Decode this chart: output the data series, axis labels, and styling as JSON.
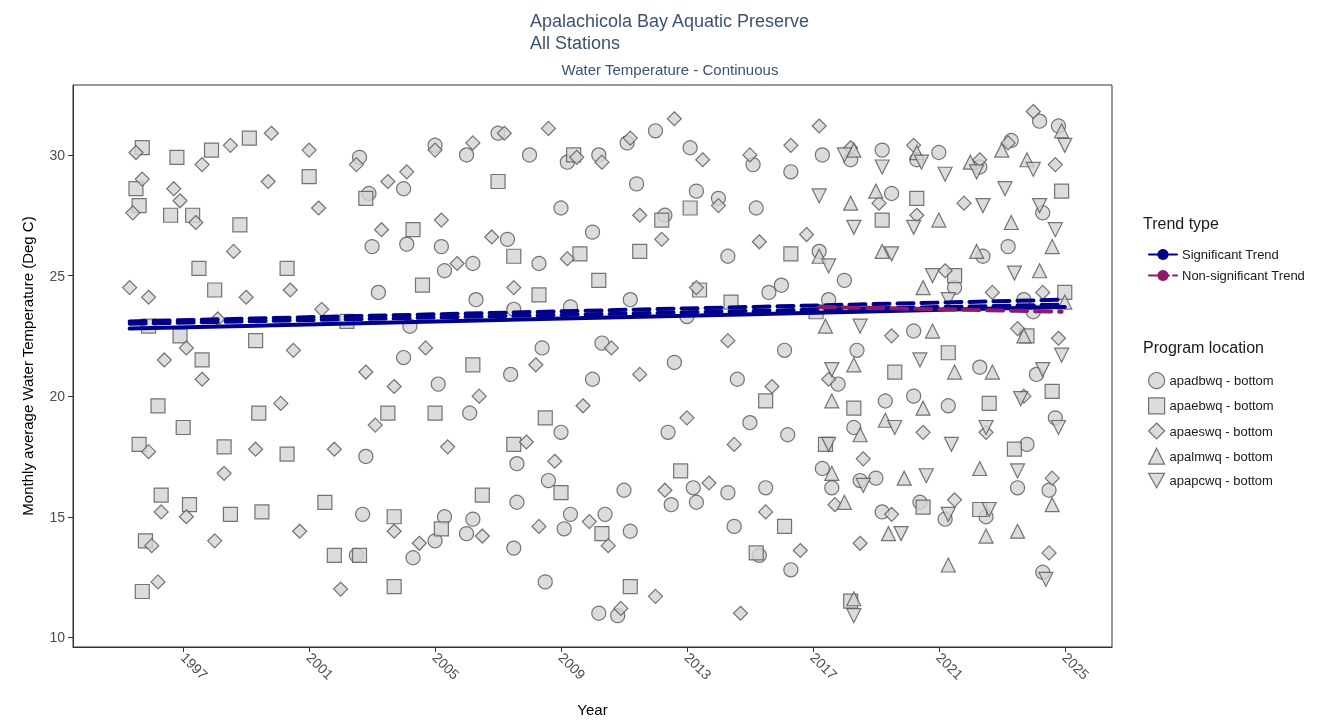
{
  "chart_data": {
    "type": "scatter",
    "title": "Apalachicola Bay Aquatic Preserve\nAll Stations",
    "subtitle": "Water Temperature - Continuous",
    "xlabel": "Year",
    "ylabel": "Monthly average Water Temperature (Deg C)",
    "legend_title": [
      "Trend type",
      "Program location"
    ],
    "legend": "right",
    "grid": false,
    "xlim": [
      1993.5,
      2026.5
    ],
    "xticks": [
      1997,
      2001,
      2005,
      2009,
      2013,
      2017,
      2021,
      2025
    ],
    "ylim": [
      9.6,
      32.9
    ],
    "yticks": [
      10,
      15,
      20,
      25,
      30
    ],
    "series": [
      {
        "name": "apadbwq - bottom",
        "marker": "circle",
        "color": "#d3d3d3",
        "x": [
          2002.6,
          2002.9,
          2003.0,
          2003.2,
          2002.8,
          2002.5,
          2002.7,
          2004.0,
          2004.1,
          2004.2,
          2004.0,
          2004.3,
          2005.0,
          2005.2,
          2005.3,
          2005.1,
          2005.3,
          2005.0,
          2006.0,
          2006.2,
          2006.3,
          2006.1,
          2006.2,
          2006.0,
          2007.0,
          2007.3,
          2007.5,
          2007.4,
          2007.6,
          2007.6,
          2007.5,
          2008.0,
          2008.3,
          2008.4,
          2008.6,
          2008.5,
          2009.2,
          2009.0,
          2009.3,
          2009.0,
          2009.3,
          2009.1,
          2010.2,
          2010.0,
          2010.0,
          2010.2,
          2010.4,
          2010.3,
          2011.1,
          2011.4,
          2011.2,
          2011.0,
          2010.8,
          2011.2,
          2012.0,
          2012.3,
          2012.6,
          2012.4,
          2012.5,
          2013.1,
          2013.3,
          2013.0,
          2013.2,
          2013.3,
          2014.0,
          2014.3,
          2014.6,
          2014.3,
          2014.5,
          2015.1,
          2015.2,
          2015.6,
          2015.5,
          2015.0,
          2015.3,
          2016.3,
          2016.0,
          2016.1,
          2016.2,
          2016.3,
          2017.3,
          2017.2,
          2017.5,
          2017.8,
          2017.3,
          2017.6,
          2018.2,
          2018.0,
          2018.4,
          2018.5,
          2018.3,
          2019.2,
          2019.5,
          2019.3,
          2019.0,
          2019.2,
          2020.3,
          2020.2,
          2020.2,
          2020.4,
          2021.0,
          2021.5,
          2021.3,
          2021.2,
          2022.3,
          2022.4,
          2022.3,
          2022.5,
          2023.3,
          2023.2,
          2023.7,
          2023.8,
          2023.5,
          2024.2,
          2024.3,
          2024.0,
          2024.1,
          2024.5,
          2024.3,
          2024.8,
          2024.7
        ],
        "values": [
          29.9,
          28.4,
          26.2,
          24.3,
          17.5,
          13.4,
          15.1,
          28.6,
          26.3,
          22.9,
          21.6,
          13.3,
          30.4,
          26.2,
          25.2,
          20.5,
          15.0,
          14.0,
          30.0,
          25.5,
          24.0,
          19.3,
          14.9,
          14.3,
          30.9,
          26.5,
          23.6,
          20.9,
          17.2,
          15.6,
          13.7,
          30.0,
          25.5,
          22.0,
          16.5,
          12.3,
          29.7,
          27.8,
          23.7,
          18.5,
          15.1,
          14.5,
          30.0,
          26.8,
          20.7,
          11.0,
          15.1,
          22.2,
          30.5,
          28.8,
          24.0,
          16.1,
          10.9,
          14.4,
          31.0,
          27.5,
          21.4,
          18.5,
          15.5,
          30.3,
          28.5,
          23.3,
          16.2,
          15.6,
          28.2,
          25.8,
          20.7,
          16.0,
          14.6,
          29.6,
          27.8,
          24.3,
          16.2,
          18.9,
          13.4,
          29.3,
          24.6,
          21.9,
          18.4,
          12.8,
          30.0,
          26.0,
          24.0,
          20.5,
          17.0,
          16.2,
          29.8,
          24.8,
          21.9,
          16.5,
          18.7,
          30.2,
          28.4,
          19.8,
          16.6,
          15.2,
          29.8,
          22.7,
          20.0,
          15.6,
          30.1,
          24.5,
          19.6,
          14.9,
          29.5,
          25.8,
          21.2,
          15.0,
          30.6,
          26.2,
          24.0,
          18.0,
          16.2,
          31.4,
          27.6,
          23.5,
          20.9,
          16.1,
          12.7,
          31.2,
          19.1
        ]
      },
      {
        "name": "apaebwq - bottom",
        "marker": "square",
        "color": "#d3d3d3",
        "x": [
          1995.5,
          1995.7,
          1995.6,
          1995.8,
          1995.6,
          1995.7,
          1995.9,
          1996.2,
          1996.3,
          1996.6,
          1996.8,
          1996.9,
          1997.0,
          1997.2,
          1997.3,
          1997.5,
          1997.6,
          1997.9,
          1998.0,
          1998.3,
          1998.5,
          1998.8,
          1999.1,
          1999.3,
          1999.4,
          1999.5,
          2000.3,
          2000.3,
          2001.0,
          2001.5,
          2001.8,
          2002.2,
          2002.6,
          2002.8,
          2003.5,
          2003.7,
          2003.7,
          2004.3,
          2004.6,
          2005.0,
          2005.2,
          2006.2,
          2006.5,
          2007.0,
          2007.5,
          2007.5,
          2008.3,
          2008.5,
          2009.0,
          2009.4,
          2009.6,
          2010.2,
          2010.3,
          2011.2,
          2011.5,
          2012.2,
          2012.8,
          2013.1,
          2013.4,
          2014.4,
          2015.2,
          2015.5,
          2016.1,
          2016.3,
          2017.1,
          2017.4,
          2018.2,
          2018.3,
          2019.2,
          2019.6,
          2020.3,
          2020.5,
          2021.3,
          2021.5,
          2022.3,
          2022.6,
          2023.4,
          2023.8,
          2024.6,
          2025.0,
          2024.9
        ],
        "values": [
          28.6,
          30.3,
          27.9,
          14.0,
          18.0,
          11.9,
          22.9,
          19.6,
          15.9,
          27.5,
          29.9,
          22.5,
          18.7,
          15.5,
          27.5,
          25.3,
          21.5,
          30.2,
          24.4,
          17.9,
          15.1,
          27.1,
          30.7,
          22.3,
          19.3,
          15.2,
          25.3,
          17.6,
          29.1,
          15.6,
          13.4,
          23.1,
          13.4,
          28.2,
          19.3,
          12.1,
          15.0,
          26.9,
          24.6,
          19.3,
          14.5,
          21.3,
          15.9,
          28.9,
          25.8,
          18.0,
          24.2,
          19.1,
          16.0,
          30.0,
          25.9,
          24.8,
          14.3,
          12.1,
          26.0,
          27.3,
          16.9,
          27.8,
          24.4,
          23.9,
          13.5,
          19.8,
          14.6,
          25.9,
          23.5,
          18.0,
          11.5,
          19.5,
          27.3,
          21.0,
          28.2,
          15.4,
          21.8,
          25.0,
          15.3,
          19.7,
          17.8,
          22.5,
          20.2,
          24.3,
          28.5
        ]
      },
      {
        "name": "apaeswq - bottom",
        "marker": "diamond",
        "color": "#d3d3d3",
        "x": [
          1995.3,
          1995.5,
          1995.4,
          1995.9,
          1995.7,
          1996.0,
          1996.2,
          1996.3,
          1995.9,
          1996.4,
          1996.7,
          1996.9,
          1997.1,
          1997.1,
          1997.4,
          1997.6,
          1997.6,
          1998.1,
          1998.0,
          1998.3,
          1998.6,
          1998.5,
          1999.0,
          1999.3,
          1999.7,
          1999.8,
          2000.1,
          2000.4,
          2000.5,
          2000.7,
          2001.0,
          2001.3,
          2001.4,
          2001.8,
          2002.0,
          2002.5,
          2002.8,
          2003.1,
          2003.3,
          2003.5,
          2003.7,
          2003.7,
          2004.1,
          2004.5,
          2004.7,
          2005.0,
          2005.2,
          2005.4,
          2005.7,
          2006.2,
          2006.4,
          2006.5,
          2006.8,
          2007.2,
          2007.5,
          2007.9,
          2008.2,
          2008.3,
          2008.6,
          2008.8,
          2009.2,
          2009.5,
          2009.7,
          2009.9,
          2010.3,
          2010.6,
          2010.5,
          2010.9,
          2011.2,
          2011.5,
          2011.5,
          2012.0,
          2012.2,
          2012.3,
          2012.6,
          2013.0,
          2013.3,
          2013.5,
          2013.7,
          2014.0,
          2014.3,
          2014.5,
          2014.7,
          2015.0,
          2015.3,
          2015.5,
          2015.7,
          2016.3,
          2016.6,
          2016.8,
          2017.2,
          2017.5,
          2017.7,
          2018.2,
          2018.5,
          2018.6,
          2019.1,
          2019.5,
          2019.5,
          2020.2,
          2020.3,
          2020.5,
          2021.2,
          2021.5,
          2021.8,
          2022.3,
          2022.5,
          2022.7,
          2023.2,
          2023.5,
          2023.7,
          2024.0,
          2024.3,
          2024.5,
          2024.6,
          2024.7,
          2024.8
        ],
        "values": [
          24.5,
          30.1,
          27.6,
          24.1,
          29.0,
          13.8,
          12.3,
          15.2,
          17.7,
          21.5,
          28.6,
          28.1,
          22.0,
          15.0,
          27.2,
          29.6,
          20.7,
          23.2,
          14.0,
          16.8,
          26.0,
          30.4,
          24.1,
          17.8,
          28.9,
          30.9,
          19.7,
          24.4,
          21.9,
          14.4,
          30.2,
          27.8,
          23.6,
          17.8,
          12.0,
          29.6,
          21.0,
          18.8,
          26.9,
          28.9,
          14.4,
          20.4,
          29.3,
          13.9,
          22.0,
          30.2,
          27.3,
          17.9,
          25.5,
          30.5,
          20.0,
          14.2,
          26.6,
          30.9,
          24.5,
          18.1,
          21.3,
          14.6,
          31.1,
          17.3,
          25.7,
          29.9,
          19.6,
          14.8,
          29.7,
          22.0,
          13.8,
          11.2,
          30.7,
          27.5,
          20.9,
          11.7,
          26.5,
          16.1,
          31.5,
          19.1,
          24.5,
          29.8,
          16.4,
          27.9,
          22.3,
          18.0,
          11.0,
          30.0,
          26.4,
          15.2,
          20.4,
          30.4,
          13.6,
          26.7,
          31.2,
          20.7,
          15.5,
          30.3,
          13.9,
          17.4,
          28.0,
          22.5,
          15.1,
          30.4,
          27.5,
          18.5,
          25.2,
          15.7,
          28.0,
          29.8,
          18.5,
          24.3,
          30.5,
          22.8,
          20.0,
          31.8,
          24.3,
          13.5,
          16.6,
          29.6,
          22.4
        ]
      },
      {
        "name": "apalmwq - bottom",
        "marker": "triangle",
        "color": "#d3d3d3",
        "x": [
          2017.2,
          2017.4,
          2017.6,
          2017.6,
          2018.3,
          2018.2,
          2018.3,
          2018.5,
          2018.3,
          2018.0,
          2019.0,
          2019.2,
          2019.3,
          2019.4,
          2019.9,
          2020.3,
          2020.5,
          2020.5,
          2020.8,
          2021.3,
          2021.0,
          2021.5,
          2022.0,
          2022.2,
          2022.3,
          2022.5,
          2022.7,
          2023.0,
          2023.3,
          2023.5,
          2023.7,
          2023.8,
          2024.2,
          2024.6,
          2024.6,
          2024.9,
          2025.0
        ],
        "values": [
          25.8,
          22.9,
          19.8,
          16.8,
          30.2,
          28.0,
          21.3,
          18.4,
          11.6,
          15.6,
          28.5,
          26.0,
          19.0,
          14.3,
          16.6,
          30.1,
          24.5,
          19.5,
          22.7,
          13.0,
          27.3,
          21.0,
          29.7,
          26.0,
          17.0,
          14.2,
          21.0,
          30.2,
          27.2,
          14.4,
          22.5,
          29.8,
          25.2,
          15.5,
          26.2,
          31.0,
          23.9
        ]
      },
      {
        "name": "apapcwq - bottom",
        "marker": "triangle-down",
        "color": "#d3d3d3",
        "x": [
          2017.2,
          2017.5,
          2017.6,
          2017.5,
          2018.0,
          2018.3,
          2018.5,
          2018.6,
          2018.3,
          2019.2,
          2019.5,
          2019.6,
          2019.8,
          2020.45,
          2020.2,
          2020.4,
          2020.6,
          2020.8,
          2021.2,
          2021.3,
          2021.4,
          2021.3,
          2022.2,
          2022.4,
          2022.5,
          2022.6,
          2023.1,
          2023.4,
          2023.5,
          2023.6,
          2024.0,
          2024.2,
          2024.3,
          2024.4,
          2024.7,
          2024.8,
          2025.0,
          2024.9
        ],
        "values": [
          28.3,
          25.4,
          21.1,
          18.0,
          30.0,
          27.0,
          22.9,
          16.3,
          10.9,
          29.5,
          25.9,
          18.7,
          14.3,
          29.7,
          27.0,
          21.5,
          16.7,
          25.0,
          29.2,
          24.0,
          18.0,
          15.1,
          29.3,
          27.9,
          18.7,
          15.3,
          28.6,
          25.1,
          16.9,
          19.9,
          29.4,
          27.9,
          21.1,
          12.4,
          26.9,
          18.7,
          30.4,
          21.7
        ]
      },
      {
        "name": "Significant Trend",
        "type": "line",
        "marker": "none",
        "line_style": "solid",
        "color": "#00008b",
        "x": [
          1995.3,
          2025.0
        ],
        "values": [
          22.8,
          23.7
        ]
      },
      {
        "type": "line",
        "marker": "none",
        "line_style": "dashed",
        "color": "#00008b",
        "x": [
          1995.3,
          2025.0
        ],
        "values": [
          23.0,
          23.8
        ]
      },
      {
        "type": "line",
        "marker": "none",
        "line_style": "dashed",
        "color": "#00008b",
        "x": [
          1995.3,
          2025.0
        ],
        "values": [
          23.1,
          24.0
        ]
      },
      {
        "name": "Non-significant Trend",
        "type": "line",
        "marker": "none",
        "line_style": "dashed",
        "color": "#8b1a6b",
        "x": [
          2017.2,
          2024.9
        ],
        "values": [
          23.7,
          23.5
        ]
      }
    ]
  }
}
